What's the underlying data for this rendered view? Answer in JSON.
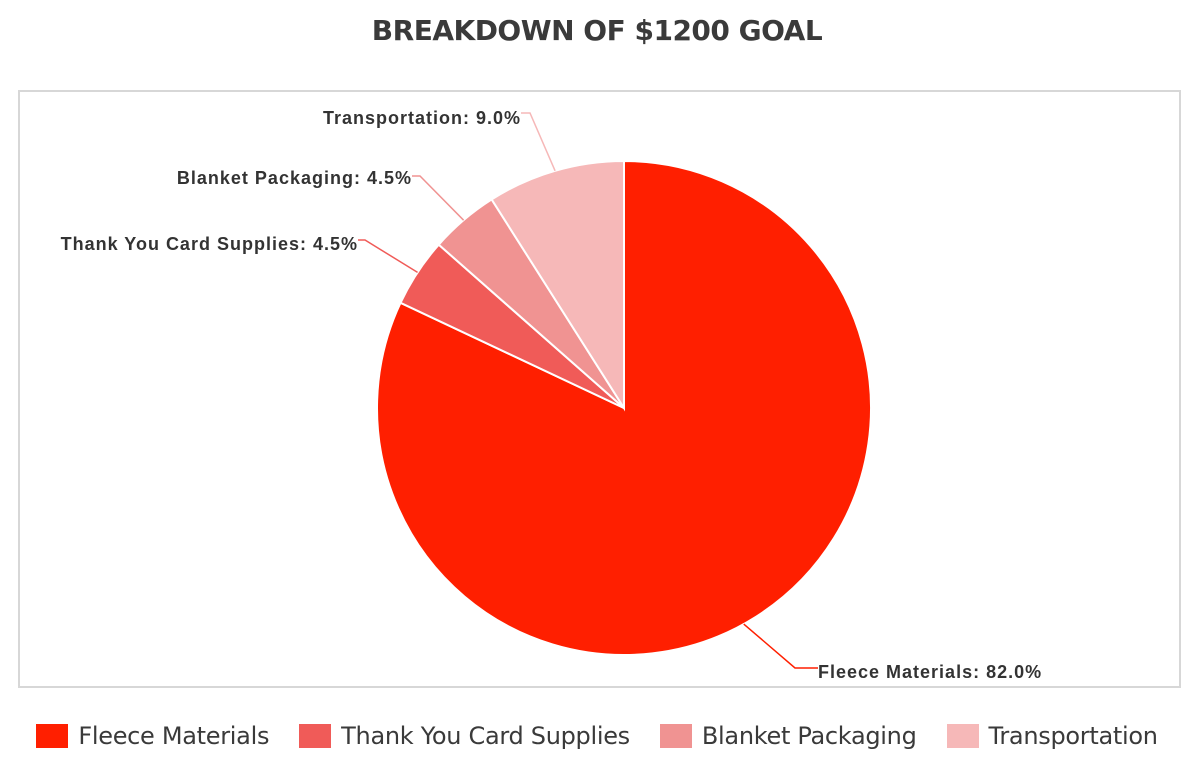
{
  "chart_data": {
    "type": "pie",
    "title": "BREAKDOWN OF $1200 GOAL",
    "categories": [
      "Fleece Materials",
      "Thank You Card Supplies",
      "Blanket Packaging",
      "Transportation"
    ],
    "values": [
      82.0,
      4.5,
      4.5,
      9.0
    ],
    "value_unit": "%",
    "data_labels": [
      "Fleece Materials: 82.0%",
      "Thank You Card Supplies: 4.5%",
      "Blanket Packaging: 4.5%",
      "Transportation: 9.0%"
    ],
    "colors": [
      "#ff1f00",
      "#f05b58",
      "#f09392",
      "#f6b8b8"
    ],
    "start_angle_deg": 0,
    "direction": "clockwise",
    "legend_placement": "bottom"
  }
}
